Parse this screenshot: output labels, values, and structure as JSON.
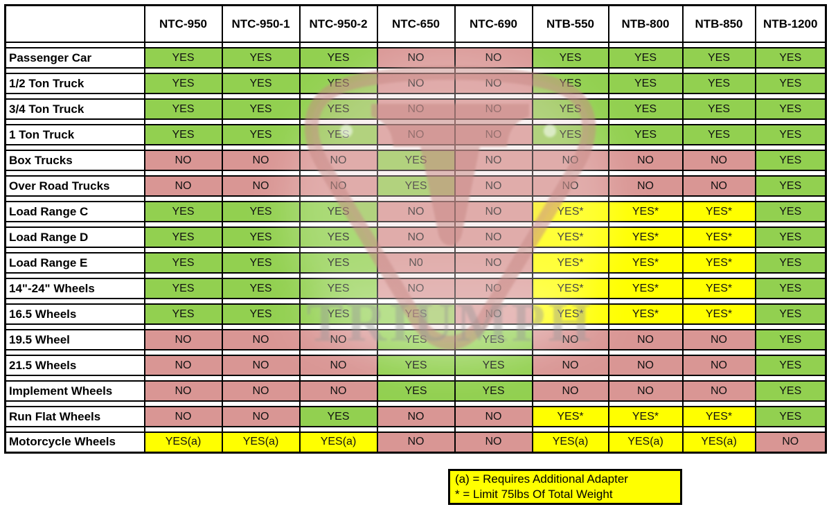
{
  "colors": {
    "yes_bg": "#92D050",
    "no_bg": "#D99694",
    "special_bg": "#FFFF00",
    "border": "#000000"
  },
  "table": {
    "corner_label": "",
    "columns": [
      "NTC-950",
      "NTC-950-1",
      "NTC-950-2",
      "NTC-650",
      "NTC-690",
      "NTB-550",
      "NTB-800",
      "NTB-850",
      "NTB-1200"
    ],
    "rows": [
      {
        "label": "Passenger Car",
        "values": [
          "YES",
          "YES",
          "YES",
          "NO",
          "NO",
          "YES",
          "YES",
          "YES",
          "YES"
        ]
      },
      {
        "label": "1/2 Ton Truck",
        "values": [
          "YES",
          "YES",
          "YES",
          "NO",
          "NO",
          "YES",
          "YES",
          "YES",
          "YES"
        ]
      },
      {
        "label": "3/4 Ton Truck",
        "values": [
          "YES",
          "YES",
          "YES",
          "NO",
          "NO",
          "YES",
          "YES",
          "YES",
          "YES"
        ]
      },
      {
        "label": "1 Ton Truck",
        "values": [
          "YES",
          "YES",
          "YES",
          "NO",
          "NO",
          "YES",
          "YES",
          "YES",
          "YES"
        ]
      },
      {
        "label": "Box Trucks",
        "values": [
          "NO",
          "NO",
          "NO",
          "YES",
          "NO",
          "NO",
          "NO",
          "NO",
          "YES"
        ]
      },
      {
        "label": "Over Road Trucks",
        "values": [
          "NO",
          "NO",
          "NO",
          "YES",
          "NO",
          "NO",
          "NO",
          "NO",
          "YES"
        ]
      },
      {
        "label": "Load Range C",
        "values": [
          "YES",
          "YES",
          "YES",
          "NO",
          "NO",
          "YES*",
          "YES*",
          "YES*",
          "YES"
        ]
      },
      {
        "label": "Load Range D",
        "values": [
          "YES",
          "YES",
          "YES",
          "NO",
          "NO",
          "YES*",
          "YES*",
          "YES*",
          "YES"
        ]
      },
      {
        "label": "Load Range E",
        "values": [
          "YES",
          "YES",
          "YES",
          "N0",
          "NO",
          "YES*",
          "YES*",
          "YES*",
          "YES"
        ]
      },
      {
        "label": "14\"-24\" Wheels",
        "values": [
          "YES",
          "YES",
          "YES",
          "NO",
          "NO",
          "YES*",
          "YES*",
          "YES*",
          "YES"
        ]
      },
      {
        "label": "16.5 Wheels",
        "values": [
          "YES",
          "YES",
          "YES",
          "YES",
          "NO",
          "YES*",
          "YES*",
          "YES*",
          "YES"
        ]
      },
      {
        "label": "19.5 Wheel",
        "values": [
          "NO",
          "NO",
          "NO",
          "YES",
          "YES",
          "NO",
          "NO",
          "NO",
          "YES"
        ]
      },
      {
        "label": "21.5 Wheels",
        "values": [
          "NO",
          "NO",
          "NO",
          "YES",
          "YES",
          "NO",
          "NO",
          "NO",
          "YES"
        ]
      },
      {
        "label": "Implement Wheels",
        "values": [
          "NO",
          "NO",
          "NO",
          "YES",
          "YES",
          "NO",
          "NO",
          "NO",
          "YES"
        ]
      },
      {
        "label": "Run Flat Wheels",
        "values": [
          "NO",
          "NO",
          "YES",
          "NO",
          "NO",
          "YES*",
          "YES*",
          "YES*",
          "YES"
        ]
      },
      {
        "label": "Motorcycle Wheels",
        "values": [
          "YES(a)",
          "YES(a)",
          "YES(a)",
          "NO",
          "NO",
          "YES(a)",
          "YES(a)",
          "YES(a)",
          "NO"
        ]
      }
    ]
  },
  "legend": {
    "line1": "(a) = Requires Additional Adapter",
    "line2": "* = Limit 75lbs Of Total Weight"
  },
  "watermark": {
    "brand": "TRIUMPH"
  }
}
